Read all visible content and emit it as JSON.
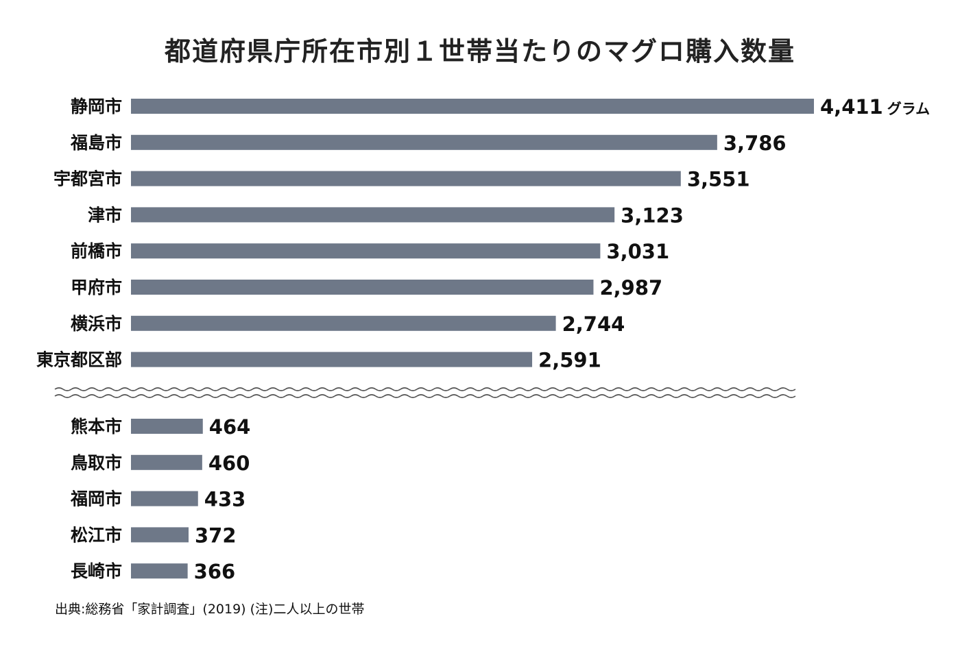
{
  "chart_data": {
    "type": "bar",
    "orientation": "horizontal",
    "title": "都道府県庁所在市別１世帯当たりのマグロ購入数量",
    "unit": "グラム",
    "categories": [
      "静岡市",
      "福島市",
      "宇都宮市",
      "津市",
      "前橋市",
      "甲府市",
      "横浜市",
      "東京都区部"
    ],
    "values": [
      4411,
      3786,
      3551,
      3123,
      3031,
      2987,
      2744,
      2591
    ],
    "value_labels": [
      "4,411",
      "3,786",
      "3,551",
      "3,123",
      "3,031",
      "2,987",
      "2,744",
      "2,591"
    ],
    "bottom_group": {
      "categories": [
        "熊本市",
        "鳥取市",
        "福岡市",
        "松江市",
        "長崎市"
      ],
      "values": [
        464,
        460,
        433,
        372,
        366
      ],
      "value_labels": [
        "464",
        "460",
        "433",
        "372",
        "366"
      ]
    },
    "axis_break": true,
    "bar_color": "#6e7888",
    "grid": false,
    "legend": "none",
    "source_note": "出典:総務省「家計調査」(2019) (注)二人以上の世帯"
  }
}
